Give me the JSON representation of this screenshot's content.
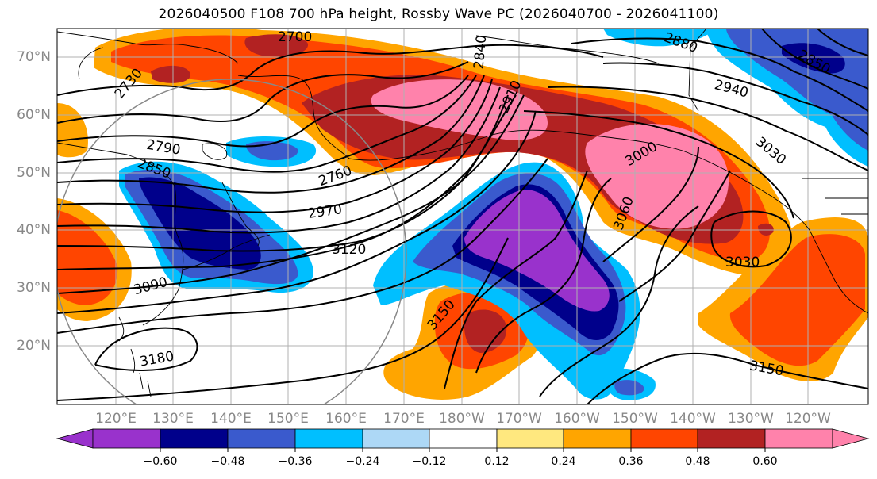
{
  "title": "2026040500 F108 700 hPa height, Rossby Wave PC (2026040700 - 2026041100)",
  "lat_labels": [
    "70°N",
    "60°N",
    "50°N",
    "40°N",
    "30°N",
    "20°N"
  ],
  "lon_labels": [
    "120°E",
    "130°E",
    "140°E",
    "150°E",
    "160°E",
    "170°E",
    "180°W",
    "170°W",
    "160°W",
    "150°W",
    "140°W",
    "130°W",
    "120°W"
  ],
  "colorbar": {
    "ticks": [
      "−0.60",
      "−0.48",
      "−0.36",
      "−0.24",
      "−0.12",
      "0.12",
      "0.24",
      "0.36",
      "0.48",
      "0.60"
    ],
    "colors": [
      "#9932CC",
      "#00008B",
      "#3A5ACD",
      "#00BFFF",
      "#ADD8F6",
      "#FFFFFF",
      "#FFE87F",
      "#FFA500",
      "#FF4500",
      "#B22222",
      "#FF82AB"
    ]
  },
  "contour_labels": [
    "2700",
    "2730",
    "2790",
    "2850",
    "2760",
    "2970",
    "3120",
    "3090",
    "3150",
    "3180",
    "2880",
    "2940",
    "2910",
    "2840",
    "2850",
    "3000",
    "3030",
    "3060",
    "3030",
    "3150"
  ],
  "fill_colors": {
    "purple": "#9932CC",
    "navy": "#00008B",
    "blue": "#3A5ACD",
    "cyan": "#00BFFF",
    "orange": "#FFA500",
    "red": "#FF4500",
    "darkred": "#B22222",
    "pink": "#FF82AB"
  }
}
